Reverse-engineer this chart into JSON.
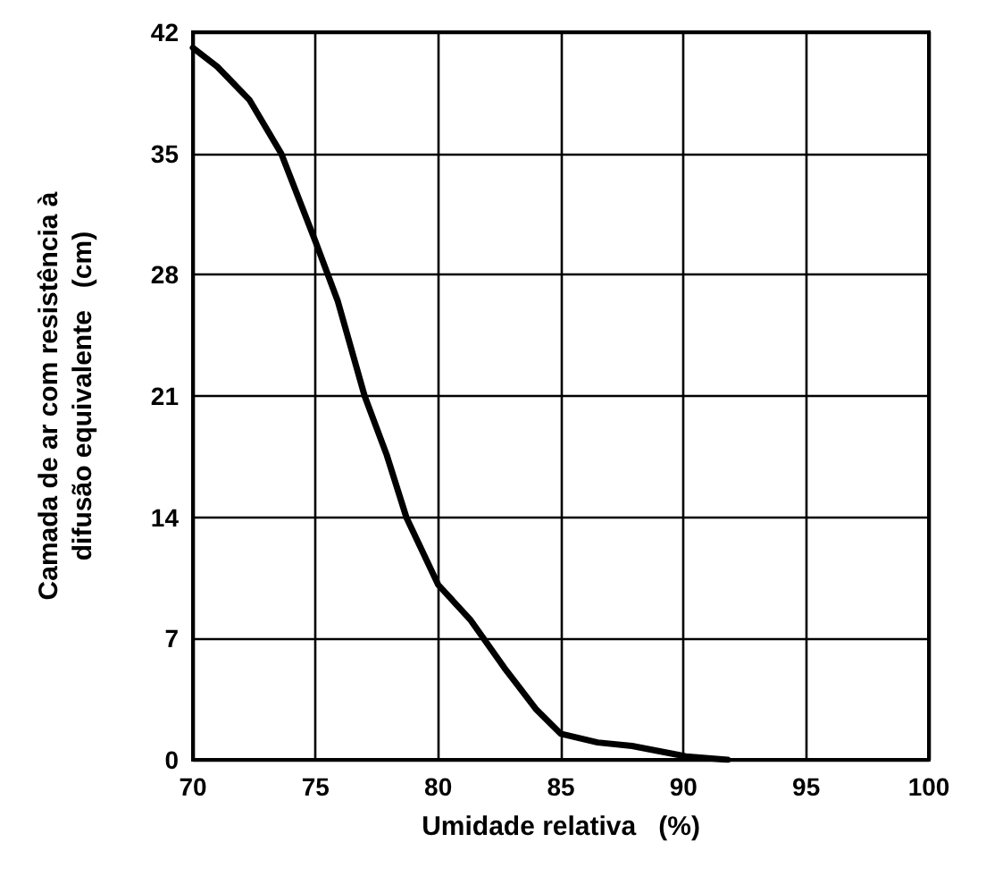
{
  "chart_data": {
    "type": "line",
    "xlabel": "Umidade relativa   (%)",
    "ylabel": "Camada de ar com resistência à\ndifusão equivalente   (cm)",
    "series": [
      {
        "color": "#000000",
        "x": [
          70,
          71,
          72.3,
          73.6,
          75,
          75.9,
          77,
          77.9,
          78.7,
          80,
          81.3,
          82.7,
          84,
          85,
          86.5,
          87.9,
          90.1,
          91.8
        ],
        "values": [
          41.1,
          40,
          38.1,
          35,
          29.9,
          26.5,
          21,
          17.6,
          14,
          10.1,
          8.1,
          5.3,
          2.9,
          1.5,
          1,
          0.8,
          0.2,
          0
        ]
      }
    ],
    "xlim": [
      70,
      100
    ],
    "xticks": [
      70,
      75,
      80,
      85,
      90,
      95,
      100
    ],
    "ylim": [
      0,
      42
    ],
    "yticks": [
      0,
      7,
      14,
      21,
      28,
      35,
      42
    ],
    "grid": true,
    "marker": "none",
    "line_style": "solid"
  }
}
